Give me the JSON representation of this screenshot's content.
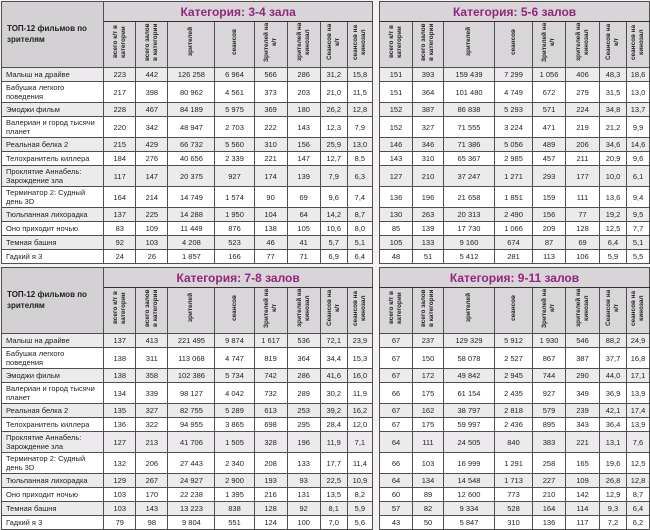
{
  "page": {
    "row_header_title": "ТОП-12 фильмов по зрителям",
    "films": [
      "Малыш на драйве",
      "Бабушка легкого поведения",
      "Эмоджи фильм",
      "Валериан и город тысячи планет",
      "Реальная белка 2",
      "Телохранитель киллера",
      "Проклятие Аннабель: Зарождение зла",
      "Терминатор 2: Судный день 3D",
      "Тюльпанная лихорадка",
      "Оно приходит ночью",
      "Темная башня",
      "Гадкий я 3"
    ],
    "column_headers": [
      "всего к/т в категории",
      "всего залов в категории",
      "зрителей",
      "сеансов",
      "Зрителей на к/т",
      "зрителей на кинозал",
      "Сеансов на к/т",
      "сеансов на кинозал"
    ],
    "colors": {
      "accent_text": "#92267e",
      "header_bg": "#d9d4d8",
      "stripe_bg": "#eceaec",
      "page_bg": "#f5f0f4"
    }
  },
  "tables": [
    {
      "title": "Категория: 3-4 зала",
      "rows": [
        [
          "223",
          "442",
          "126 258",
          "6 964",
          "566",
          "286",
          "31,2",
          "15,8"
        ],
        [
          "217",
          "398",
          "80 962",
          "4 561",
          "373",
          "203",
          "21,0",
          "11,5"
        ],
        [
          "228",
          "467",
          "84 189",
          "5 975",
          "369",
          "180",
          "26,2",
          "12,8"
        ],
        [
          "220",
          "342",
          "48 947",
          "2 703",
          "222",
          "143",
          "12,3",
          "7,9"
        ],
        [
          "215",
          "429",
          "66 732",
          "5 560",
          "310",
          "156",
          "25,9",
          "13,0"
        ],
        [
          "184",
          "276",
          "40 656",
          "2 339",
          "221",
          "147",
          "12,7",
          "8,5"
        ],
        [
          "117",
          "147",
          "20 375",
          "927",
          "174",
          "139",
          "7,9",
          "6,3"
        ],
        [
          "164",
          "214",
          "14 749",
          "1 574",
          "90",
          "69",
          "9,6",
          "7,4"
        ],
        [
          "137",
          "225",
          "14 288",
          "1 950",
          "104",
          "64",
          "14,2",
          "8,7"
        ],
        [
          "83",
          "109",
          "11 449",
          "876",
          "138",
          "105",
          "10,6",
          "8,0"
        ],
        [
          "92",
          "103",
          "4 208",
          "523",
          "46",
          "41",
          "5,7",
          "5,1"
        ],
        [
          "24",
          "26",
          "1 857",
          "166",
          "77",
          "71",
          "6,9",
          "6,4"
        ]
      ]
    },
    {
      "title": "Категория: 5-6 залов",
      "rows": [
        [
          "151",
          "393",
          "159 439",
          "7 299",
          "1 056",
          "406",
          "48,3",
          "18,6"
        ],
        [
          "151",
          "364",
          "101 480",
          "4 749",
          "672",
          "279",
          "31,5",
          "13,0"
        ],
        [
          "152",
          "387",
          "86 838",
          "5 293",
          "571",
          "224",
          "34,8",
          "13,7"
        ],
        [
          "152",
          "327",
          "71 555",
          "3 224",
          "471",
          "219",
          "21,2",
          "9,9"
        ],
        [
          "146",
          "346",
          "71 386",
          "5 056",
          "489",
          "206",
          "34,6",
          "14,6"
        ],
        [
          "143",
          "310",
          "65 367",
          "2 985",
          "457",
          "211",
          "20,9",
          "9,6"
        ],
        [
          "127",
          "210",
          "37 247",
          "1 271",
          "293",
          "177",
          "10,0",
          "6,1"
        ],
        [
          "136",
          "196",
          "21 658",
          "1 851",
          "159",
          "111",
          "13,6",
          "9,4"
        ],
        [
          "130",
          "263",
          "20 313",
          "2 490",
          "156",
          "77",
          "19,2",
          "9,5"
        ],
        [
          "85",
          "139",
          "17 730",
          "1 066",
          "209",
          "128",
          "12,5",
          "7,7"
        ],
        [
          "105",
          "133",
          "9 160",
          "674",
          "87",
          "69",
          "6,4",
          "5,1"
        ],
        [
          "48",
          "51",
          "5 412",
          "281",
          "113",
          "106",
          "5,9",
          "5,5"
        ]
      ]
    },
    {
      "title": "Категория: 7-8 залов",
      "rows": [
        [
          "137",
          "413",
          "221 495",
          "9 874",
          "1 617",
          "536",
          "72,1",
          "23,9"
        ],
        [
          "138",
          "311",
          "113 068",
          "4 747",
          "819",
          "364",
          "34,4",
          "15,3"
        ],
        [
          "138",
          "358",
          "102 386",
          "5 734",
          "742",
          "286",
          "41,6",
          "16,0"
        ],
        [
          "134",
          "339",
          "98 127",
          "4 042",
          "732",
          "289",
          "30,2",
          "11,9"
        ],
        [
          "135",
          "327",
          "82 755",
          "5 289",
          "613",
          "253",
          "39,2",
          "16,2"
        ],
        [
          "136",
          "322",
          "94 955",
          "3 865",
          "698",
          "295",
          "28,4",
          "12,0"
        ],
        [
          "127",
          "213",
          "41 706",
          "1 505",
          "328",
          "196",
          "11,9",
          "7,1"
        ],
        [
          "132",
          "206",
          "27 443",
          "2 340",
          "208",
          "133",
          "17,7",
          "11,4"
        ],
        [
          "129",
          "267",
          "24 927",
          "2 900",
          "193",
          "93",
          "22,5",
          "10,9"
        ],
        [
          "103",
          "170",
          "22 238",
          "1 395",
          "216",
          "131",
          "13,5",
          "8,2"
        ],
        [
          "103",
          "143",
          "13 223",
          "838",
          "128",
          "92",
          "8,1",
          "5,9"
        ],
        [
          "79",
          "98",
          "9 804",
          "551",
          "124",
          "100",
          "7,0",
          "5,6"
        ]
      ]
    },
    {
      "title": "Категория: 9-11 залов",
      "rows": [
        [
          "67",
          "237",
          "129 329",
          "5 912",
          "1 930",
          "546",
          "88,2",
          "24,9"
        ],
        [
          "67",
          "150",
          "58 078",
          "2 527",
          "867",
          "387",
          "37,7",
          "16,8"
        ],
        [
          "67",
          "172",
          "49 842",
          "2 945",
          "744",
          "290",
          "44,0",
          "17,1"
        ],
        [
          "66",
          "175",
          "61 154",
          "2 435",
          "927",
          "349",
          "36,9",
          "13,9"
        ],
        [
          "67",
          "162",
          "38 797",
          "2 818",
          "579",
          "239",
          "42,1",
          "17,4"
        ],
        [
          "67",
          "175",
          "59 997",
          "2 436",
          "895",
          "343",
          "36,4",
          "13,9"
        ],
        [
          "64",
          "111",
          "24 505",
          "840",
          "383",
          "221",
          "13,1",
          "7,6"
        ],
        [
          "66",
          "103",
          "16 999",
          "1 291",
          "258",
          "165",
          "19,6",
          "12,5"
        ],
        [
          "64",
          "134",
          "14 548",
          "1 713",
          "227",
          "109",
          "26,8",
          "12,8"
        ],
        [
          "60",
          "89",
          "12 600",
          "773",
          "210",
          "142",
          "12,9",
          "8,7"
        ],
        [
          "57",
          "82",
          "9 334",
          "528",
          "164",
          "114",
          "9,3",
          "6,4"
        ],
        [
          "43",
          "50",
          "5 847",
          "310",
          "136",
          "117",
          "7,2",
          "6,2"
        ]
      ]
    }
  ]
}
